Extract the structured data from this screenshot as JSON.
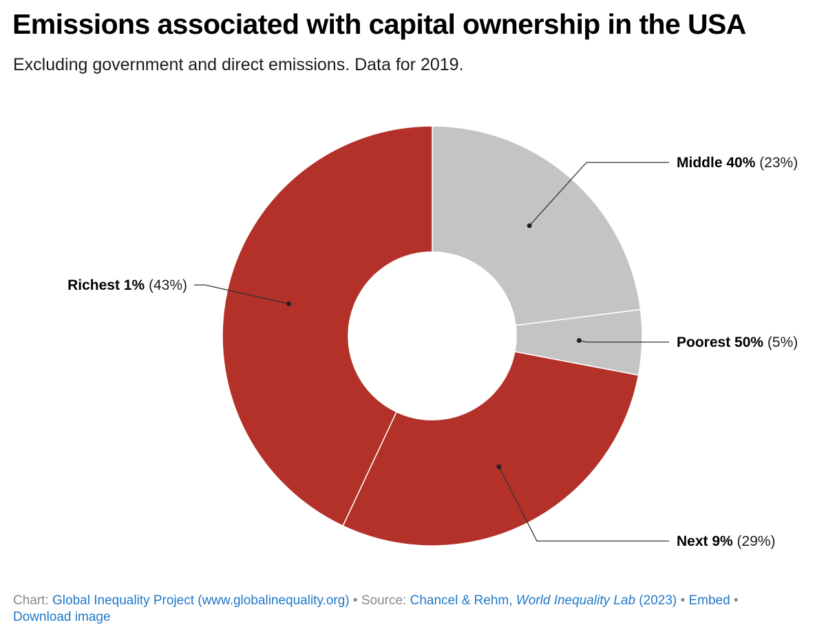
{
  "header": {
    "title": "Emissions associated with capital ownership in the USA",
    "subtitle": "Excluding government and direct emissions. Data for 2019."
  },
  "chart_data": {
    "type": "pie",
    "donut": true,
    "categories": [
      "Middle 40%",
      "Poorest 50%",
      "Next 9%",
      "Richest 1%"
    ],
    "values": [
      23,
      5,
      29,
      43
    ],
    "value_labels": [
      "(23%)",
      "(5%)",
      "(29%)",
      "(43%)"
    ],
    "colors": [
      "#c4c4c4",
      "#c4c4c4",
      "#b33128",
      "#b33128"
    ],
    "label_placement": [
      "right",
      "right",
      "right",
      "left"
    ]
  },
  "footer": {
    "chart_prefix": "Chart:",
    "chart_link": "Global Inequality Project (www.globalinequality.org)",
    "bullet": "•",
    "source_prefix": "Source:",
    "source_authors": "Chancel & Rehm,",
    "source_publication": "World Inequality Lab",
    "source_year": "(2023)",
    "embed_label": "Embed",
    "download_label": "Download image"
  }
}
